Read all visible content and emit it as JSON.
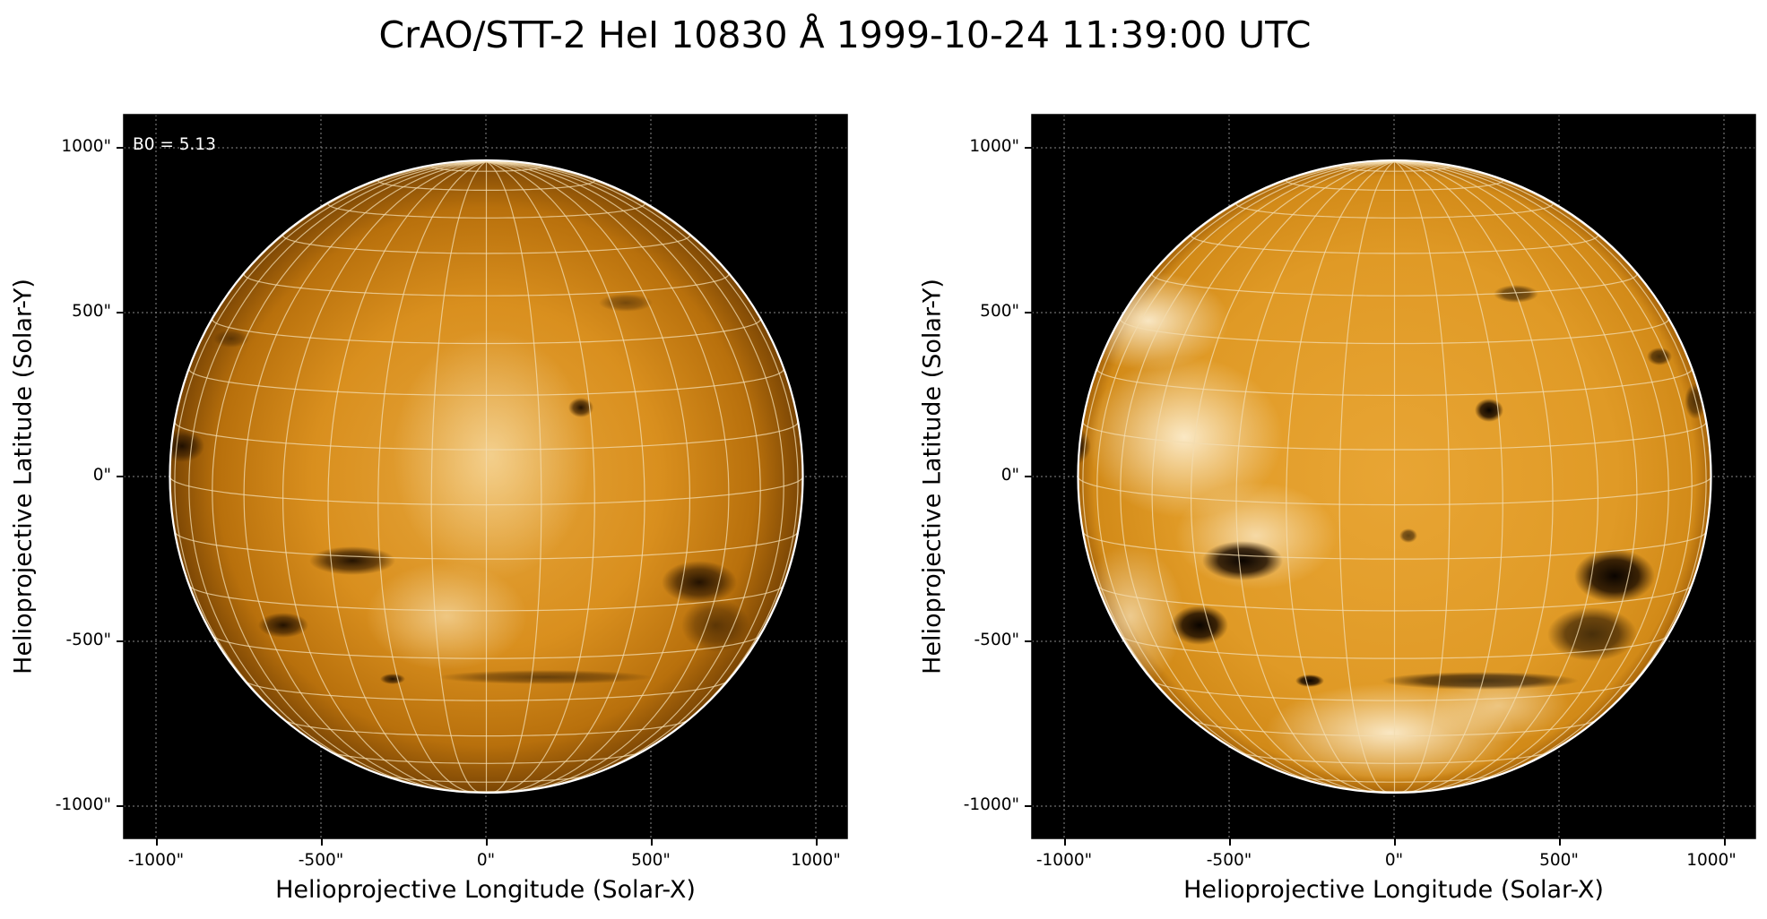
{
  "figure": {
    "title": "CrAO/STT-2 HeI 10830 Å 1999-10-24 11:39:00 UTC"
  },
  "panels": [
    {
      "id": "left",
      "annotation": "B0 = 5.13",
      "xlabel": "Helioprojective Longitude (Solar-X)",
      "ylabel": "Helioprojective Latitude (Solar-Y)",
      "xticks": [
        "-1000\"",
        "-500\"",
        "0\"",
        "500\"",
        "1000\""
      ],
      "yticks": [
        "1000\"",
        "500\"",
        "0\"",
        "-500\"",
        "-1000\""
      ],
      "colormap": "solar-orange",
      "contrast": "normal"
    },
    {
      "id": "right",
      "xlabel": "Helioprojective Longitude (Solar-X)",
      "ylabel": "Helioprojective Latitude (Solar-Y)",
      "xticks": [
        "-1000\"",
        "-500\"",
        "0\"",
        "500\"",
        "1000\""
      ],
      "yticks": [
        "1000\"",
        "500\"",
        "0\"",
        "-500\"",
        "-1000\""
      ],
      "colormap": "solar-orange",
      "contrast": "enhanced"
    }
  ],
  "colors": {
    "background": "#000000",
    "disk_center": "#e1a033",
    "disk_edge": "#8a5206",
    "limb": "#ffffff",
    "grid": "#ffffff"
  }
}
